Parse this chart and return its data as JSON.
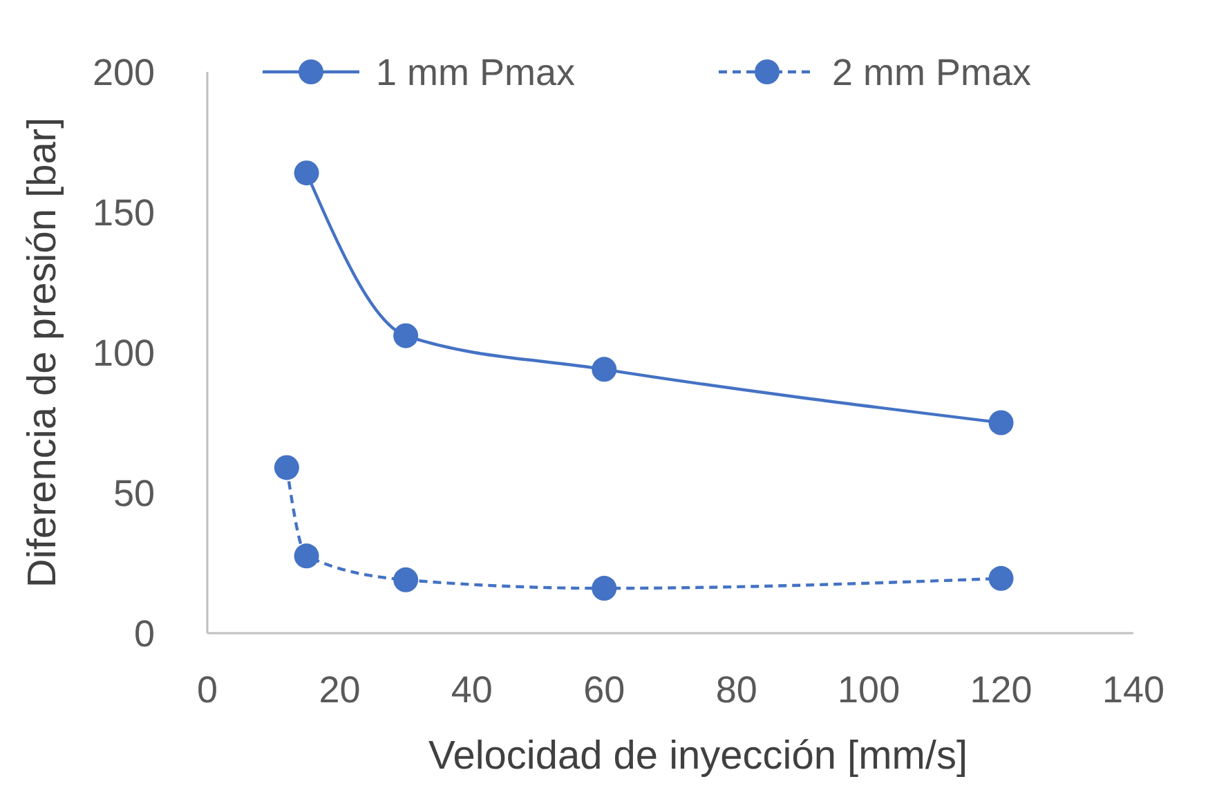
{
  "chart_data": {
    "type": "line",
    "xlabel": "Velocidad de inyección [mm/s]",
    "ylabel": "Diferencia de presión [bar]",
    "xlim": [
      0,
      140
    ],
    "xticks": [
      0,
      20,
      40,
      60,
      80,
      100,
      120,
      140
    ],
    "ylim": [
      0,
      200
    ],
    "yticks": [
      0,
      50,
      100,
      150,
      200
    ],
    "grid": false,
    "legend": "top",
    "marker": "circle",
    "series": [
      {
        "name": "1 mm Pmax",
        "color": "#4472c4",
        "line_style": "solid",
        "x": [
          15,
          30,
          60,
          120
        ],
        "values": [
          164,
          106,
          94,
          75
        ]
      },
      {
        "name": "2 mm Pmax",
        "color": "#4472c4",
        "line_style": "dashed",
        "x": [
          12,
          15,
          30,
          60,
          120
        ],
        "values": [
          59,
          27.5,
          19,
          16,
          19.5
        ]
      }
    ]
  }
}
